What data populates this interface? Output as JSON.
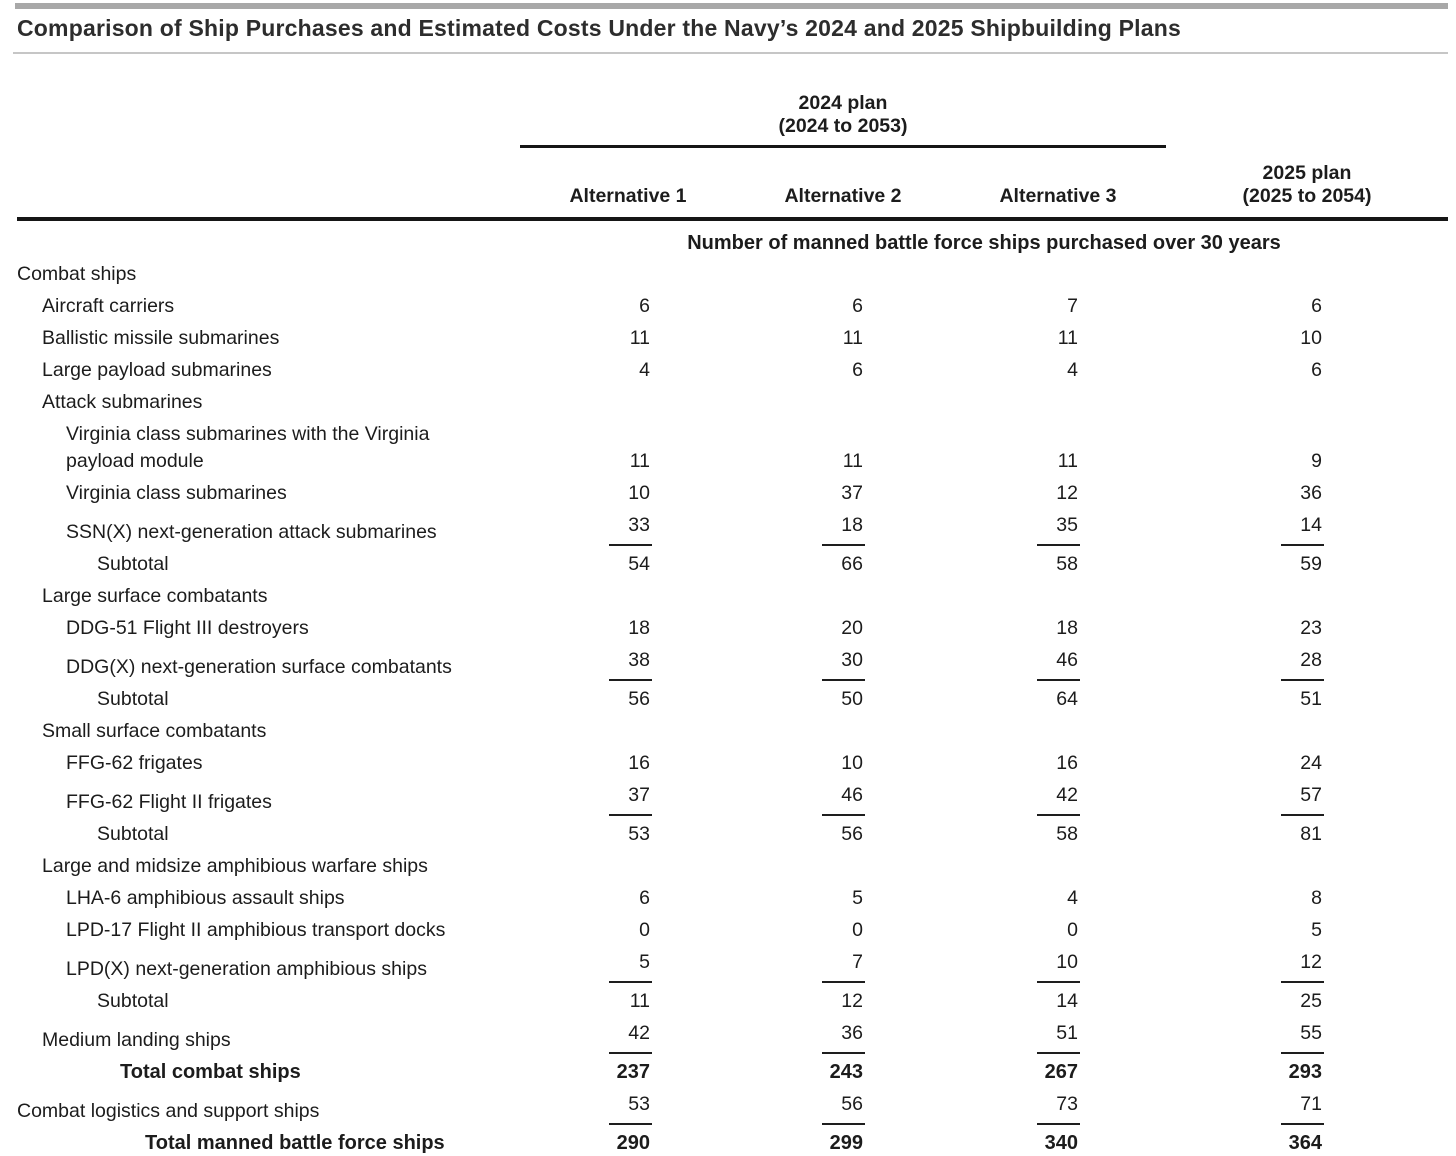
{
  "page": {
    "title": "Comparison of Ship Purchases and Estimated Costs Under the Navy’s 2024 and 2025 Shipbuilding Plans"
  },
  "header": {
    "group_2024": {
      "line1": "2024 plan",
      "line2": "(2024 to 2053)"
    },
    "alt_columns": [
      "Alternative 1",
      "Alternative 2",
      "Alternative 3"
    ],
    "plan_2025": {
      "line1": "2025 plan",
      "line2": "(2025 to 2054)"
    },
    "units_note": "Number of manned battle force ships purchased over 30 years"
  },
  "colors": {
    "top_bar": "#a8a8a8",
    "title_rule": "#c6c6c6",
    "heavy_rule": "#161616",
    "text": "#1c1c1c"
  },
  "table": {
    "rows": [
      {
        "label": "Combat ships",
        "indent": 0,
        "values": null
      },
      {
        "label": "Aircraft carriers",
        "indent": 1,
        "values": [
          "6",
          "6",
          "7",
          "6"
        ]
      },
      {
        "label": "Ballistic missile submarines",
        "indent": 1,
        "values": [
          "11",
          "11",
          "11",
          "10"
        ]
      },
      {
        "label": "Large payload submarines",
        "indent": 1,
        "values": [
          "4",
          "6",
          "4",
          "6"
        ]
      },
      {
        "label": "Attack submarines",
        "indent": 1,
        "values": null
      },
      {
        "label": "Virginia class submarines with the Virginia\npayload module",
        "indent": 2,
        "values": [
          "11",
          "11",
          "11",
          "9"
        ]
      },
      {
        "label": "Virginia class submarines",
        "indent": 2,
        "values": [
          "10",
          "37",
          "12",
          "36"
        ]
      },
      {
        "label": "SSN(X) next-generation attack submarines",
        "indent": 2,
        "values": [
          "33",
          "18",
          "35",
          "14"
        ],
        "ruled": true
      },
      {
        "label": "Subtotal",
        "indent": 3,
        "values": [
          "54",
          "66",
          "58",
          "59"
        ]
      },
      {
        "label": "Large surface combatants",
        "indent": 1,
        "values": null
      },
      {
        "label": "DDG-51 Flight III destroyers",
        "indent": 2,
        "values": [
          "18",
          "20",
          "18",
          "23"
        ]
      },
      {
        "label": "DDG(X) next-generation surface combatants",
        "indent": 2,
        "values": [
          "38",
          "30",
          "46",
          "28"
        ],
        "ruled": true
      },
      {
        "label": "Subtotal",
        "indent": 3,
        "values": [
          "56",
          "50",
          "64",
          "51"
        ]
      },
      {
        "label": "Small surface combatants",
        "indent": 1,
        "values": null
      },
      {
        "label": "FFG-62 frigates",
        "indent": 2,
        "values": [
          "16",
          "10",
          "16",
          "24"
        ]
      },
      {
        "label": "FFG-62 Flight II frigates",
        "indent": 2,
        "values": [
          "37",
          "46",
          "42",
          "57"
        ],
        "ruled": true
      },
      {
        "label": "Subtotal",
        "indent": 3,
        "values": [
          "53",
          "56",
          "58",
          "81"
        ]
      },
      {
        "label": "Large and midsize amphibious warfare ships",
        "indent": 1,
        "values": null
      },
      {
        "label": "LHA-6 amphibious assault ships",
        "indent": 2,
        "values": [
          "6",
          "5",
          "4",
          "8"
        ]
      },
      {
        "label": "LPD-17 Flight II amphibious transport docks",
        "indent": 2,
        "values": [
          "0",
          "0",
          "0",
          "5"
        ]
      },
      {
        "label": "LPD(X) next-generation amphibious ships",
        "indent": 2,
        "values": [
          "5",
          "7",
          "10",
          "12"
        ],
        "ruled": true
      },
      {
        "label": "Subtotal",
        "indent": 3,
        "values": [
          "11",
          "12",
          "14",
          "25"
        ]
      },
      {
        "label": "Medium landing ships",
        "indent": 1,
        "values": [
          "42",
          "36",
          "51",
          "55"
        ],
        "ruled": true
      },
      {
        "label": "Total combat ships",
        "indent": 4,
        "values": [
          "237",
          "243",
          "267",
          "293"
        ],
        "bold": true
      },
      {
        "label": "Combat logistics and support ships",
        "indent": 0,
        "values": [
          "53",
          "56",
          "73",
          "71"
        ],
        "ruled": true
      },
      {
        "label": "Total manned battle force ships",
        "indent": 5,
        "values": [
          "290",
          "299",
          "340",
          "364"
        ],
        "bold": true
      }
    ]
  }
}
